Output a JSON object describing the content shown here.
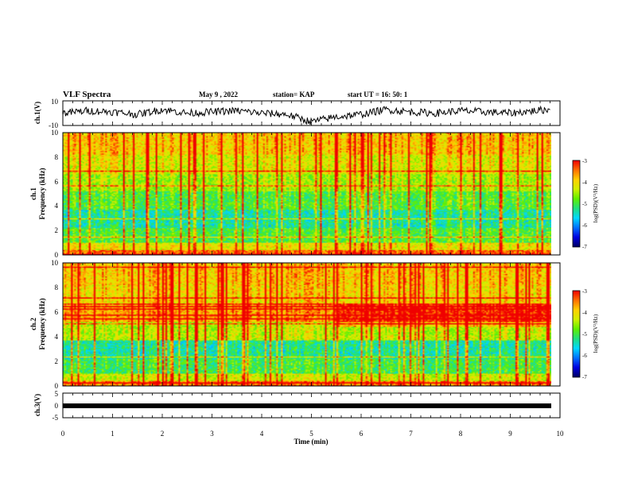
{
  "header": {
    "title": "VLF Spectra",
    "date": "May 9  , 2022",
    "station": "station= KAP",
    "start": "start  UT =   16: 50: 1"
  },
  "colors": {
    "colormap": [
      "#000060",
      "#0000e0",
      "#0070ff",
      "#00d8ff",
      "#20e080",
      "#60f000",
      "#d0f000",
      "#ffd000",
      "#ff7000",
      "#f00000",
      "#ffffff"
    ]
  },
  "chart_data": [
    {
      "type": "line",
      "panel": "ch1-waveform",
      "ylabel": "ch.1(V)",
      "xlim": [
        0,
        9.8
      ],
      "ylim": [
        -10,
        10
      ],
      "ytick_labels": [
        "10",
        "-10"
      ],
      "x": [
        0,
        0.5,
        1,
        1.5,
        2,
        2.5,
        3,
        3.5,
        4,
        4.5,
        5,
        5.5,
        6,
        6.5,
        7,
        7.5,
        8,
        8.5,
        9,
        9.5,
        9.8
      ],
      "values": [
        0,
        2,
        1,
        -1,
        3,
        0,
        1,
        2,
        0,
        -1,
        -7,
        -3,
        -1,
        3,
        1,
        0,
        2,
        1,
        0,
        2,
        3
      ]
    },
    {
      "type": "heatmap",
      "panel": "ch1-spectrogram",
      "ylabel_line1": "ch.1",
      "ylabel_line2": "Frequency  (kHz)",
      "ylim": [
        0,
        10
      ],
      "ytick_labels": [
        "0",
        "2",
        "4",
        "6",
        "8",
        "10"
      ],
      "colorbar_label": "log(PSD)(V²/Hz)",
      "colorbar_range": [
        -7,
        -3
      ],
      "colorbar_tick_labels": [
        "-3",
        "-4",
        "-5",
        "-6",
        "-7"
      ],
      "frequency_bands_khz": [
        {
          "from": 0,
          "to": 0.4,
          "level": -3.5
        },
        {
          "from": 0.4,
          "to": 1.0,
          "level": -4.2
        },
        {
          "from": 1.0,
          "to": 2.2,
          "level": -5.0
        },
        {
          "from": 2.2,
          "to": 3.7,
          "level": -5.4
        },
        {
          "from": 3.7,
          "to": 5.2,
          "level": -5.0
        },
        {
          "from": 5.2,
          "to": 6.6,
          "level": -4.6
        },
        {
          "from": 6.6,
          "to": 8.2,
          "level": -4.3
        },
        {
          "from": 8.2,
          "to": 10,
          "level": -4.0
        }
      ]
    },
    {
      "type": "heatmap",
      "panel": "ch2-spectrogram",
      "ylabel_line1": "ch.2",
      "ylabel_line2": "Frequency  (kHz)",
      "ylim": [
        0,
        10
      ],
      "ytick_labels": [
        "0",
        "2",
        "4",
        "6",
        "8",
        "10"
      ],
      "colorbar_label": "log(PSD)(V²/Hz)",
      "colorbar_range": [
        -7,
        -3
      ],
      "colorbar_tick_labels": [
        "-3",
        "-4",
        "-5",
        "-6",
        "-7"
      ],
      "frequency_bands_khz": [
        {
          "from": 0,
          "to": 0.4,
          "level": -3.6
        },
        {
          "from": 0.4,
          "to": 1.0,
          "level": -4.4
        },
        {
          "from": 1.0,
          "to": 2.2,
          "level": -5.1
        },
        {
          "from": 2.2,
          "to": 3.7,
          "level": -5.4
        },
        {
          "from": 3.7,
          "to": 5.2,
          "level": -4.5
        },
        {
          "from": 5.2,
          "to": 6.6,
          "level": -3.8
        },
        {
          "from": 6.6,
          "to": 8.2,
          "level": -4.1
        },
        {
          "from": 8.2,
          "to": 10,
          "level": -4.0
        }
      ]
    },
    {
      "type": "line",
      "panel": "ch3-waveform",
      "ylabel": "ch.3(V)",
      "xlim": [
        0,
        9.8
      ],
      "ylim": [
        -5,
        5
      ],
      "ytick_labels": [
        "5",
        "0",
        "-5"
      ],
      "x": [
        0,
        9.8
      ],
      "values": [
        -0.9,
        -0.9
      ]
    }
  ],
  "time_axis": {
    "label": "Time  (min)",
    "range": [
      0,
      10
    ],
    "tick_labels": [
      "0",
      "1",
      "2",
      "3",
      "4",
      "5",
      "6",
      "7",
      "8",
      "9",
      "10"
    ]
  }
}
